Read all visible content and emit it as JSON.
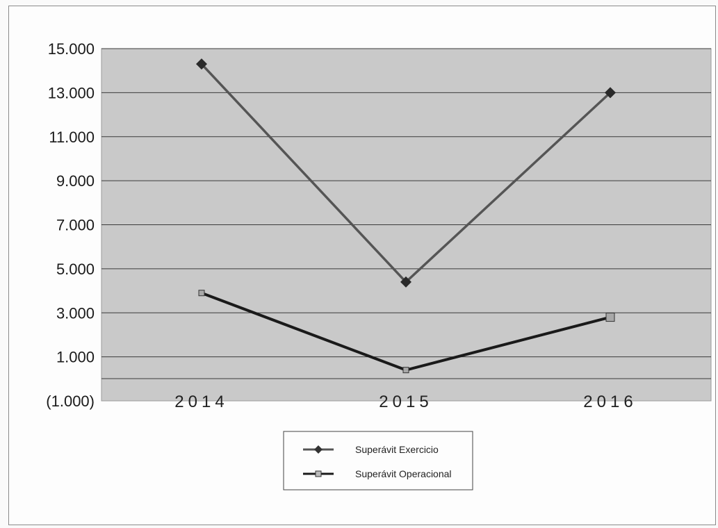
{
  "chart_data": {
    "type": "line",
    "title": "",
    "xlabel": "",
    "ylabel": "",
    "categories": [
      "2014",
      "2015",
      "2016"
    ],
    "ylim": [
      -1000,
      15000
    ],
    "yticks": [
      15000,
      13000,
      11000,
      9000,
      7000,
      5000,
      3000,
      1000,
      -1000
    ],
    "ytick_labels": [
      "15.000",
      "13.000",
      "11.000",
      "9.000",
      "7.000",
      "5.000",
      "3.000",
      "1.000",
      "(1.000)"
    ],
    "grid": true,
    "legend_position": "bottom-center",
    "series": [
      {
        "name": "Superávit Exercicio",
        "values": [
          14300,
          4400,
          13000
        ],
        "color": "#555555",
        "marker": "diamond"
      },
      {
        "name": "Superávit Operacional",
        "values": [
          3900,
          400,
          2800
        ],
        "color": "#1a1a1a",
        "marker": "square"
      }
    ],
    "plot_background": "#c9c9c9"
  }
}
